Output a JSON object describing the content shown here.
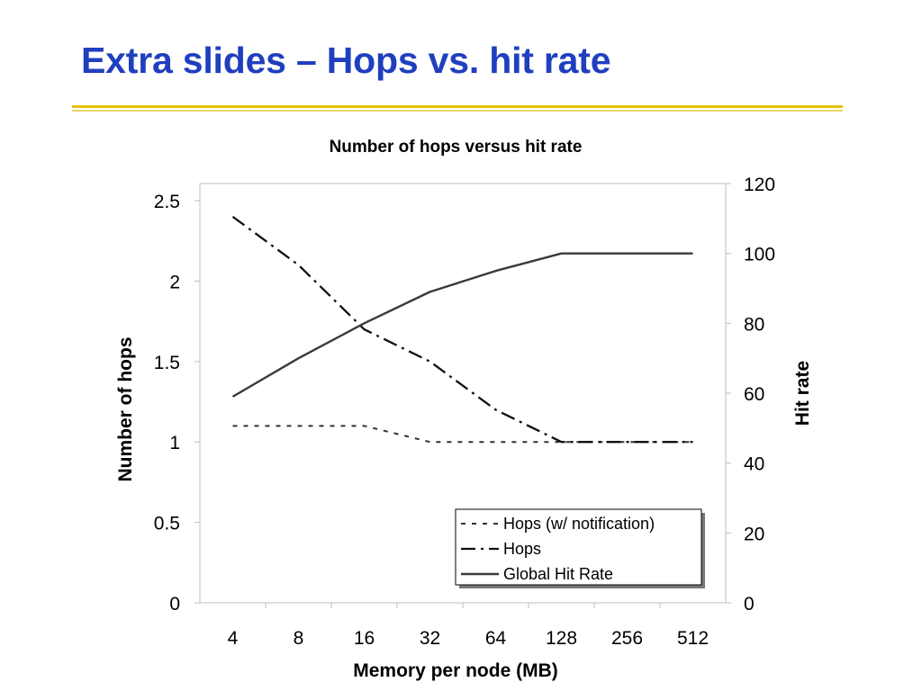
{
  "slide": {
    "title": "Extra slides – Hops vs. hit rate",
    "colors": {
      "title": "#1f3fbf",
      "rule": "#e6c200"
    }
  },
  "chart_data": {
    "type": "line",
    "title": "Number of hops versus hit rate",
    "xlabel": "Memory per node (MB)",
    "ylabel": "Number of hops",
    "y2label": "Hit rate",
    "categories": [
      "4",
      "8",
      "16",
      "32",
      "64",
      "128",
      "256",
      "512"
    ],
    "ylim": [
      0,
      2.5
    ],
    "yticks": [
      "0",
      "0.5",
      "1",
      "1.5",
      "2",
      "2.5"
    ],
    "y2lim": [
      0,
      120
    ],
    "y2ticks": [
      "0",
      "20",
      "40",
      "60",
      "80",
      "100",
      "120"
    ],
    "grid": false,
    "legend_position": "bottom-right",
    "series": [
      {
        "name": "Hops (w/ notification)",
        "axis": "left",
        "style": "dotted",
        "color": "#333333",
        "values": [
          1.1,
          1.1,
          1.1,
          1.0,
          1.0,
          1.0,
          1.0,
          1.0
        ]
      },
      {
        "name": "Hops",
        "axis": "left",
        "style": "dashdot",
        "color": "#111111",
        "values": [
          2.4,
          2.1,
          1.7,
          1.5,
          1.2,
          1.0,
          1.0,
          1.0
        ]
      },
      {
        "name": "Global Hit Rate",
        "axis": "right",
        "style": "solid",
        "color": "#3a3a3a",
        "values": [
          59,
          70,
          80,
          89,
          95,
          100,
          100,
          100
        ]
      }
    ]
  }
}
